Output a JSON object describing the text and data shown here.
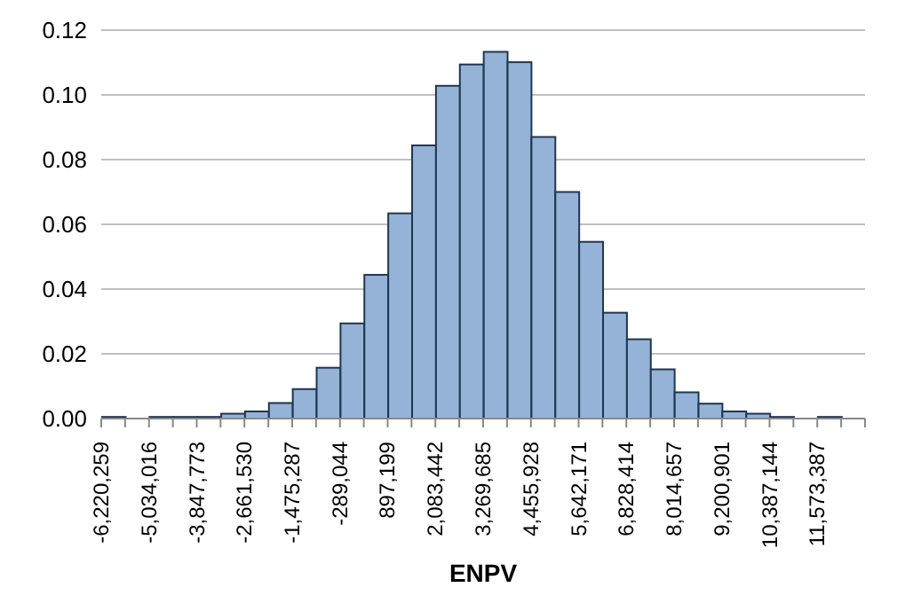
{
  "chart_data": {
    "type": "histogram",
    "xlabel": "ENPV",
    "color": "#95b3d7",
    "bins": [
      -6220259,
      -5627137.5,
      -5034016,
      -4440894.5,
      -3847773,
      -3254651.5,
      -2661530,
      -2068408.5,
      -1475287,
      -882165.5,
      -289044,
      304077.5,
      897199,
      1490320.5,
      2083442,
      2676563.5,
      3269685,
      3862806.5,
      4455928,
      5049049.5,
      5642171,
      6235292.5,
      6828414,
      7421535.5,
      8014657,
      8607779,
      9200901,
      9794022.5,
      10387144,
      10980265.5,
      11573387,
      12166508.5,
      12759630
    ],
    "values": [
      0.0005,
      0,
      0.0005,
      0.0005,
      0.0005,
      0.0015,
      0.0022,
      0.0048,
      0.0091,
      0.0157,
      0.0294,
      0.0444,
      0.0634,
      0.0844,
      0.1028,
      0.1094,
      0.1133,
      0.1101,
      0.087,
      0.07,
      0.0546,
      0.0327,
      0.0245,
      0.0152,
      0.0081,
      0.0046,
      0.0022,
      0.0015,
      0.0005,
      0,
      0.0005,
      0
    ],
    "xlim": [
      -6220259,
      12759630
    ],
    "xticks": [
      {
        "value": -6220259,
        "label": "-6,220,259"
      },
      {
        "value": -5627137.5,
        "label": null
      },
      {
        "value": -5034016,
        "label": "-5,034,016"
      },
      {
        "value": -4440894.5,
        "label": null
      },
      {
        "value": -3847773,
        "label": "-3,847,773"
      },
      {
        "value": -3254651.5,
        "label": null
      },
      {
        "value": -2661530,
        "label": "-2,661,530"
      },
      {
        "value": -2068408.5,
        "label": null
      },
      {
        "value": -1475287,
        "label": "-1,475,287"
      },
      {
        "value": -882165.5,
        "label": null
      },
      {
        "value": -289044,
        "label": "-289,044"
      },
      {
        "value": 304077.5,
        "label": null
      },
      {
        "value": 897199,
        "label": "897,199"
      },
      {
        "value": 1490320.5,
        "label": null
      },
      {
        "value": 2083442,
        "label": "2,083,442"
      },
      {
        "value": 2676563.5,
        "label": null
      },
      {
        "value": 3269685,
        "label": "3,269,685"
      },
      {
        "value": 3862806.5,
        "label": null
      },
      {
        "value": 4455928,
        "label": "4,455,928"
      },
      {
        "value": 5049049.5,
        "label": null
      },
      {
        "value": 5642171,
        "label": "5,642,171"
      },
      {
        "value": 6235292.5,
        "label": null
      },
      {
        "value": 6828414,
        "label": "6,828,414"
      },
      {
        "value": 7421535.5,
        "label": null
      },
      {
        "value": 8014657,
        "label": "8,014,657"
      },
      {
        "value": 8607779,
        "label": null
      },
      {
        "value": 9200901,
        "label": "9,200,901"
      },
      {
        "value": 9794022.5,
        "label": null
      },
      {
        "value": 10387144,
        "label": "10,387,144"
      },
      {
        "value": 10980265.5,
        "label": null
      },
      {
        "value": 11573387,
        "label": "11,573,387"
      },
      {
        "value": 12166508.5,
        "label": null
      },
      {
        "value": 12759630,
        "label": null
      }
    ],
    "ylim": [
      0,
      0.12
    ],
    "yticks": [
      {
        "value": 0,
        "label": "0.00"
      },
      {
        "value": 0.02,
        "label": "0.02"
      },
      {
        "value": 0.04,
        "label": "0.04"
      },
      {
        "value": 0.06,
        "label": "0.06"
      },
      {
        "value": 0.08,
        "label": "0.08"
      },
      {
        "value": 0.1,
        "label": "0.10"
      },
      {
        "value": 0.12,
        "label": "0.12"
      }
    ],
    "grid": "y"
  }
}
